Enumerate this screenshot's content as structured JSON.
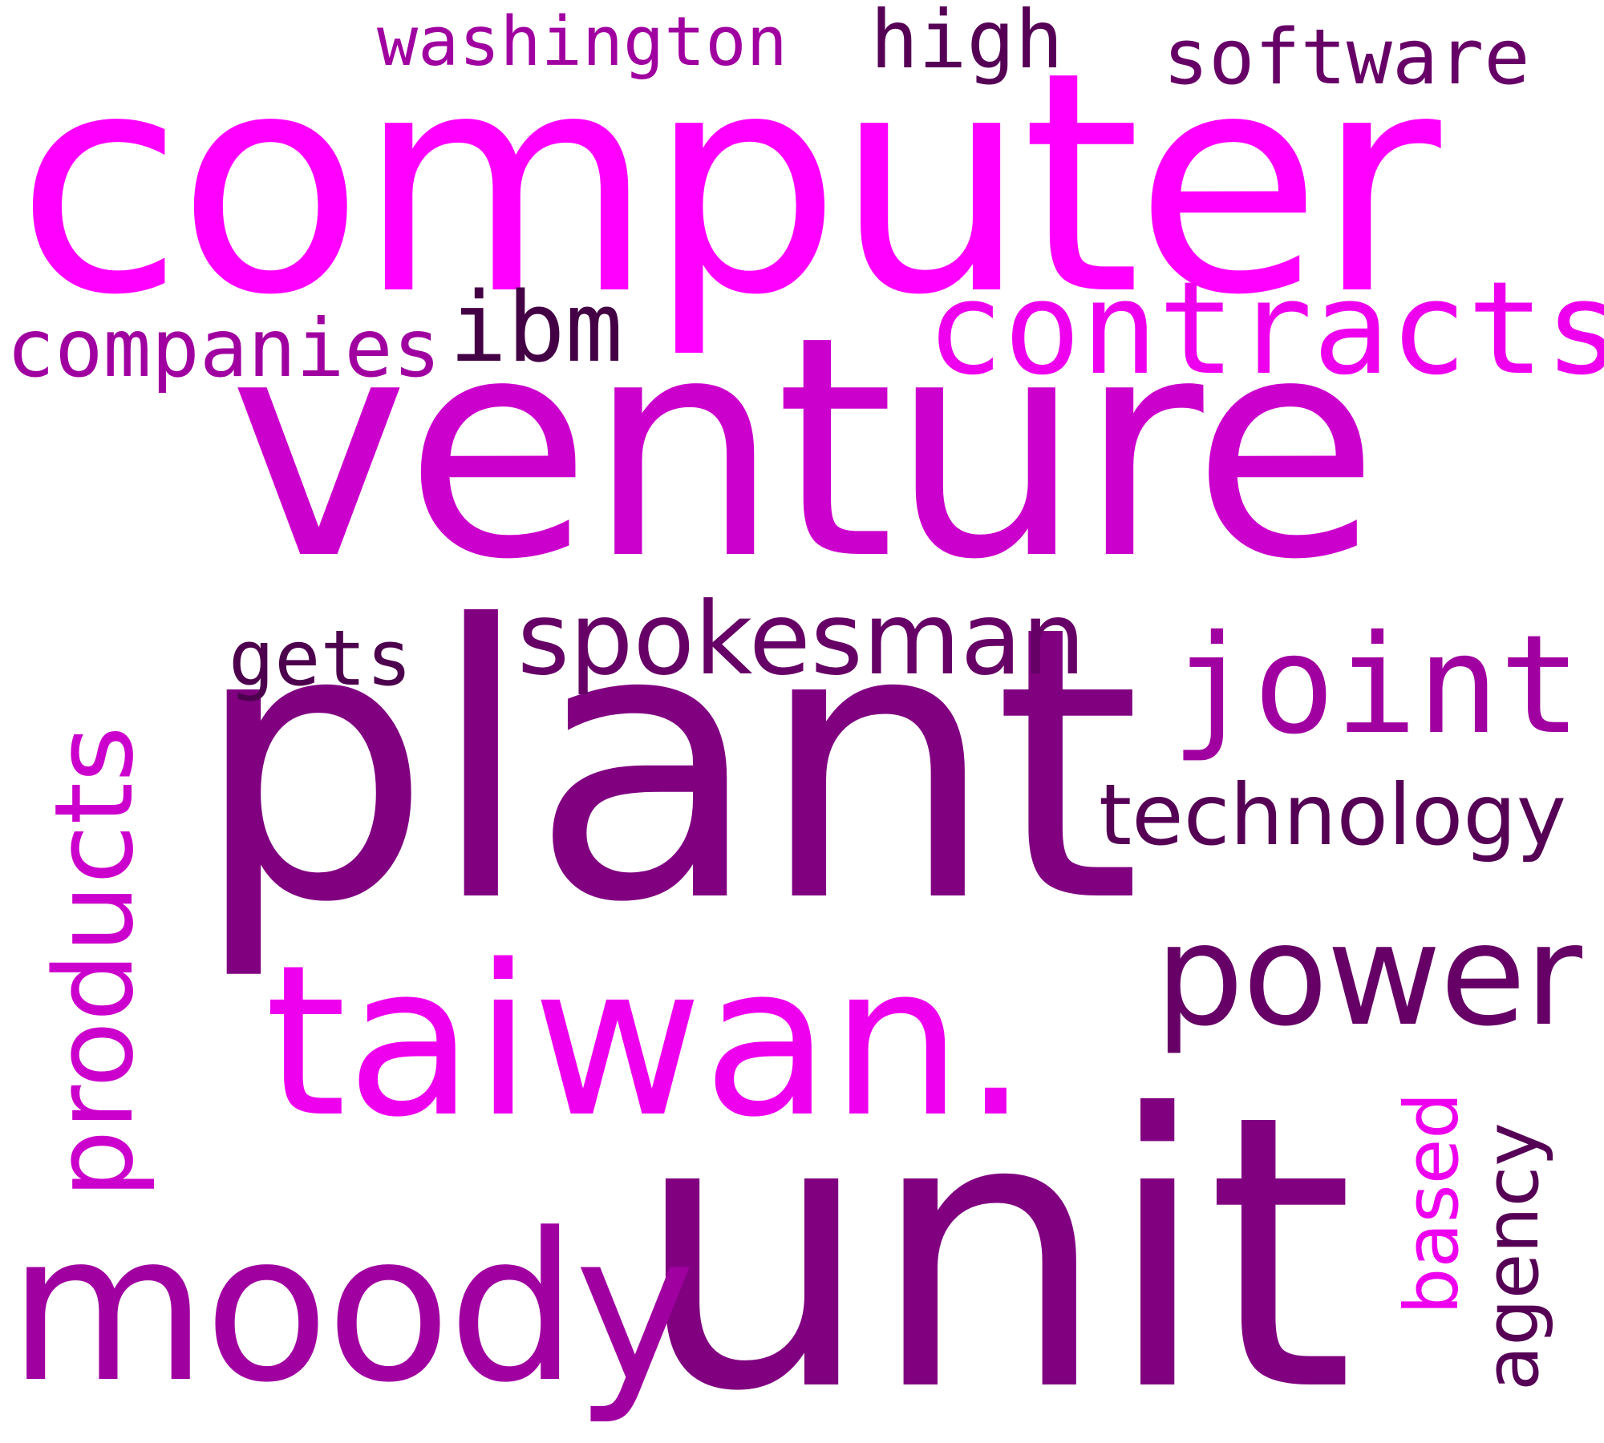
{
  "words": {
    "computer": {
      "text": "computer",
      "color": "#ff00ff"
    },
    "venture": {
      "text": "venture",
      "color": "#cc00cc"
    },
    "plant": {
      "text": "plant",
      "color": "#800080"
    },
    "unit": {
      "text": "unit",
      "color": "#800080"
    },
    "taiwan": {
      "text": "taiwan.",
      "color": "#ee00ee"
    },
    "moody": {
      "text": "moody",
      "color": "#a000a0"
    },
    "contracts": {
      "text": "contracts",
      "color": "#ee00ee"
    },
    "joint": {
      "text": "joint",
      "color": "#a000a0"
    },
    "power": {
      "text": "power",
      "color": "#660066"
    },
    "spokesman": {
      "text": "spokesman",
      "color": "#660066"
    },
    "technology": {
      "text": "technology",
      "color": "#550055"
    },
    "companies": {
      "text": "companies",
      "color": "#a000a0"
    },
    "ibm": {
      "text": "ibm",
      "color": "#440044"
    },
    "gets": {
      "text": "gets",
      "color": "#4d004d"
    },
    "washington": {
      "text": "washington",
      "color": "#a000a0"
    },
    "high": {
      "text": "high",
      "color": "#550055"
    },
    "software": {
      "text": "software",
      "color": "#660066"
    },
    "products": {
      "text": "products",
      "color": "#cc00cc"
    },
    "based": {
      "text": "based",
      "color": "#ee00ee"
    },
    "agency": {
      "text": "agency",
      "color": "#550055"
    }
  }
}
